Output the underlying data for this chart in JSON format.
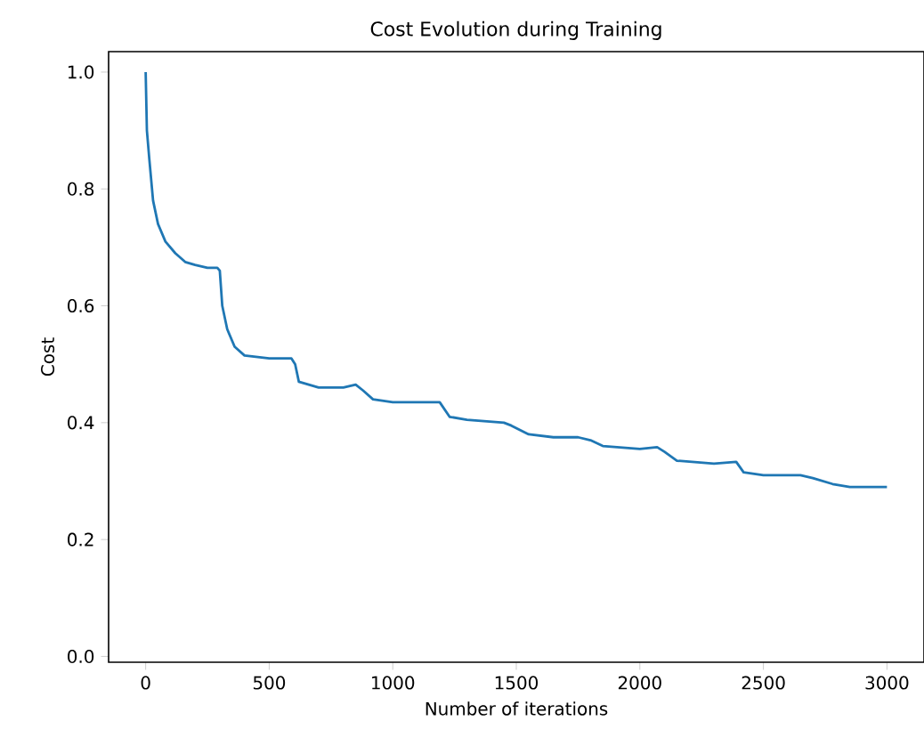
{
  "chart_data": {
    "type": "line",
    "title": "Cost Evolution during Training",
    "xlabel": "Number of iterations",
    "ylabel": "Cost",
    "xlim": [
      -150,
      3150
    ],
    "ylim": [
      -0.01,
      1.035
    ],
    "xticks": [
      0,
      500,
      1000,
      1500,
      2000,
      2500,
      3000
    ],
    "yticks": [
      {
        "value": 0,
        "label": "0.0"
      },
      {
        "value": 0.2,
        "label": "0.2"
      },
      {
        "value": 0.4,
        "label": "0.4"
      },
      {
        "value": 0.6,
        "label": "0.6"
      },
      {
        "value": 0.8,
        "label": "0.8"
      },
      {
        "value": 1.0,
        "label": "1.0"
      }
    ],
    "grid": false,
    "marker": "none",
    "line_style": "solid",
    "series": [
      {
        "color": "#1f77b4",
        "x": [
          0,
          5,
          15,
          30,
          50,
          80,
          120,
          160,
          200,
          250,
          290,
          300,
          310,
          330,
          360,
          400,
          500,
          590,
          605,
          620,
          700,
          800,
          850,
          880,
          920,
          1000,
          1100,
          1190,
          1230,
          1300,
          1450,
          1480,
          1550,
          1650,
          1750,
          1800,
          1850,
          2000,
          2070,
          2100,
          2150,
          2300,
          2390,
          2420,
          2500,
          2650,
          2700,
          2780,
          2850,
          3000
        ],
        "values": [
          1.0,
          0.9,
          0.85,
          0.78,
          0.74,
          0.71,
          0.69,
          0.675,
          0.67,
          0.665,
          0.665,
          0.66,
          0.6,
          0.56,
          0.53,
          0.515,
          0.51,
          0.51,
          0.5,
          0.47,
          0.46,
          0.46,
          0.465,
          0.455,
          0.44,
          0.435,
          0.435,
          0.435,
          0.41,
          0.405,
          0.4,
          0.395,
          0.38,
          0.375,
          0.375,
          0.37,
          0.36,
          0.355,
          0.358,
          0.35,
          0.335,
          0.33,
          0.333,
          0.315,
          0.31,
          0.31,
          0.305,
          0.295,
          0.29,
          0.29
        ]
      }
    ]
  }
}
